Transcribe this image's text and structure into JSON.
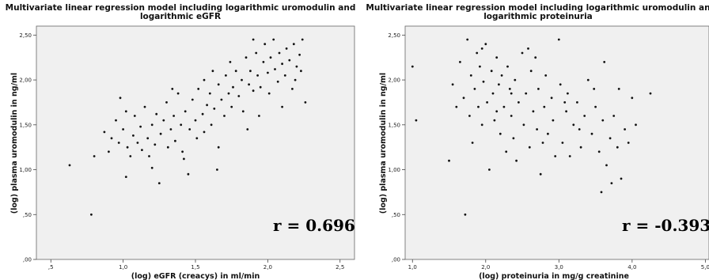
{
  "chart_data": [
    {
      "type": "scatter",
      "title": "Multivariate linear regression model including logarithmic uromodulin and logarithmic eGFR",
      "title_lines": [
        "Multivariate linear regression model including logarithmic uromodulin and",
        "logarithmic eGFR"
      ],
      "xlabel": "(log) eGFR (creacys) in ml/min",
      "ylabel": "(log) plasma uromodulin in ng/ml",
      "xlim": [
        0.4,
        2.6
      ],
      "ylim": [
        0.0,
        2.6
      ],
      "x_ticks": [
        {
          "v": 0.5,
          "label": ",5"
        },
        {
          "v": 1.0,
          "label": "1,0"
        },
        {
          "v": 1.5,
          "label": "1,5"
        },
        {
          "v": 2.0,
          "label": "2,0"
        },
        {
          "v": 2.5,
          "label": "2,5"
        }
      ],
      "y_ticks": [
        {
          "v": 0.0,
          "label": ",00"
        },
        {
          "v": 0.5,
          "label": ",50"
        },
        {
          "v": 1.0,
          "label": "1,00"
        },
        {
          "v": 1.5,
          "label": "1,50"
        },
        {
          "v": 2.0,
          "label": "2,00"
        },
        {
          "v": 2.5,
          "label": "2,50"
        }
      ],
      "annotation": "r = 0.696",
      "grid": false,
      "points": [
        [
          0.63,
          1.05
        ],
        [
          0.78,
          0.5
        ],
        [
          0.8,
          1.15
        ],
        [
          0.87,
          1.42
        ],
        [
          0.9,
          1.2
        ],
        [
          0.92,
          1.35
        ],
        [
          0.95,
          1.55
        ],
        [
          0.97,
          1.3
        ],
        [
          0.98,
          1.8
        ],
        [
          1.0,
          1.45
        ],
        [
          1.02,
          1.65
        ],
        [
          1.03,
          1.25
        ],
        [
          1.05,
          1.15
        ],
        [
          1.07,
          1.38
        ],
        [
          1.08,
          1.6
        ],
        [
          1.1,
          1.3
        ],
        [
          1.12,
          1.48
        ],
        [
          1.13,
          1.22
        ],
        [
          1.15,
          1.7
        ],
        [
          1.17,
          1.35
        ],
        [
          1.18,
          1.15
        ],
        [
          1.2,
          1.5
        ],
        [
          1.22,
          1.28
        ],
        [
          1.23,
          1.62
        ],
        [
          1.25,
          0.85
        ],
        [
          1.26,
          1.4
        ],
        [
          1.28,
          1.55
        ],
        [
          1.3,
          1.75
        ],
        [
          1.31,
          1.25
        ],
        [
          1.33,
          1.45
        ],
        [
          1.35,
          1.6
        ],
        [
          1.36,
          1.32
        ],
        [
          1.38,
          1.85
        ],
        [
          1.4,
          1.5
        ],
        [
          1.41,
          1.2
        ],
        [
          1.43,
          1.65
        ],
        [
          1.45,
          0.95
        ],
        [
          1.46,
          1.45
        ],
        [
          1.48,
          1.78
        ],
        [
          1.5,
          1.55
        ],
        [
          1.51,
          1.35
        ],
        [
          1.52,
          1.9
        ],
        [
          1.55,
          1.62
        ],
        [
          1.56,
          1.42
        ],
        [
          1.58,
          1.72
        ],
        [
          1.6,
          1.85
        ],
        [
          1.61,
          1.5
        ],
        [
          1.63,
          1.68
        ],
        [
          1.65,
          1.0
        ],
        [
          1.66,
          1.95
        ],
        [
          1.68,
          1.78
        ],
        [
          1.7,
          1.6
        ],
        [
          1.71,
          2.05
        ],
        [
          1.73,
          1.85
        ],
        [
          1.75,
          1.7
        ],
        [
          1.76,
          1.92
        ],
        [
          1.78,
          2.1
        ],
        [
          1.8,
          1.82
        ],
        [
          1.82,
          2.0
        ],
        [
          1.83,
          1.65
        ],
        [
          1.85,
          2.25
        ],
        [
          1.87,
          1.95
        ],
        [
          1.88,
          2.1
        ],
        [
          1.9,
          1.88
        ],
        [
          1.92,
          2.3
        ],
        [
          1.93,
          2.05
        ],
        [
          1.95,
          1.92
        ],
        [
          1.97,
          2.2
        ],
        [
          1.98,
          2.4
        ],
        [
          2.0,
          2.08
        ],
        [
          2.01,
          1.85
        ],
        [
          2.02,
          2.25
        ],
        [
          2.04,
          2.45
        ],
        [
          2.05,
          2.12
        ],
        [
          2.07,
          1.98
        ],
        [
          2.08,
          2.3
        ],
        [
          2.1,
          2.18
        ],
        [
          2.12,
          2.05
        ],
        [
          2.13,
          2.35
        ],
        [
          2.15,
          2.22
        ],
        [
          2.17,
          1.9
        ],
        [
          2.18,
          2.4
        ],
        [
          2.2,
          2.15
        ],
        [
          2.22,
          2.28
        ],
        [
          2.24,
          2.45
        ],
        [
          2.26,
          1.75
        ],
        [
          1.94,
          1.6
        ],
        [
          2.1,
          1.7
        ],
        [
          1.86,
          1.45
        ],
        [
          1.66,
          1.25
        ],
        [
          1.42,
          1.12
        ],
        [
          1.2,
          1.02
        ],
        [
          1.02,
          0.92
        ],
        [
          2.19,
          2.0
        ],
        [
          2.23,
          2.1
        ],
        [
          1.74,
          2.2
        ],
        [
          1.56,
          2.0
        ],
        [
          1.34,
          1.9
        ],
        [
          1.62,
          2.1
        ],
        [
          1.9,
          2.45
        ]
      ]
    },
    {
      "type": "scatter",
      "title": "Multivariate linear regression model including logarithmic uromodulin and logarithmic proteinuria",
      "title_lines": [
        "Multivariate linear regression model including logarithmic uromodulin an",
        "logarithmic proteinuria"
      ],
      "xlabel": "(log) proteinuria in mg/g creatinine",
      "ylabel": "(log) plasma uromodulin in ng/ml",
      "xlim": [
        0.9,
        5.05
      ],
      "ylim": [
        0.0,
        2.6
      ],
      "x_ticks": [
        {
          "v": 1.0,
          "label": "1,0"
        },
        {
          "v": 2.0,
          "label": "2,0"
        },
        {
          "v": 3.0,
          "label": "3,0"
        },
        {
          "v": 4.0,
          "label": "4,0"
        },
        {
          "v": 5.0,
          "label": "5,0"
        }
      ],
      "y_ticks": [
        {
          "v": 0.0,
          "label": ",00"
        },
        {
          "v": 0.5,
          "label": ",50"
        },
        {
          "v": 1.0,
          "label": "1,00"
        },
        {
          "v": 1.5,
          "label": "1,50"
        },
        {
          "v": 2.0,
          "label": "2,00"
        },
        {
          "v": 2.5,
          "label": "2,50"
        }
      ],
      "annotation": "r = -0.393",
      "grid": false,
      "points": [
        [
          1.0,
          2.15
        ],
        [
          1.05,
          1.55
        ],
        [
          1.5,
          1.1
        ],
        [
          1.55,
          1.95
        ],
        [
          1.65,
          2.2
        ],
        [
          1.7,
          1.8
        ],
        [
          1.72,
          0.5
        ],
        [
          1.75,
          2.45
        ],
        [
          1.78,
          1.6
        ],
        [
          1.8,
          2.05
        ],
        [
          1.82,
          1.3
        ],
        [
          1.85,
          1.9
        ],
        [
          1.88,
          2.3
        ],
        [
          1.9,
          1.7
        ],
        [
          1.92,
          2.15
        ],
        [
          1.95,
          1.5
        ],
        [
          1.97,
          1.98
        ],
        [
          2.0,
          2.4
        ],
        [
          2.02,
          1.75
        ],
        [
          2.05,
          1.0
        ],
        [
          2.08,
          2.1
        ],
        [
          2.1,
          1.85
        ],
        [
          2.12,
          1.55
        ],
        [
          2.15,
          2.25
        ],
        [
          2.18,
          1.95
        ],
        [
          2.2,
          1.4
        ],
        [
          2.22,
          2.05
        ],
        [
          2.25,
          1.7
        ],
        [
          2.28,
          1.2
        ],
        [
          2.3,
          2.15
        ],
        [
          2.33,
          1.9
        ],
        [
          2.35,
          1.6
        ],
        [
          2.38,
          1.35
        ],
        [
          2.4,
          2.0
        ],
        [
          2.45,
          1.75
        ],
        [
          2.5,
          2.3
        ],
        [
          2.52,
          1.5
        ],
        [
          2.55,
          1.85
        ],
        [
          2.6,
          1.25
        ],
        [
          2.62,
          2.1
        ],
        [
          2.65,
          1.65
        ],
        [
          2.7,
          1.45
        ],
        [
          2.72,
          1.9
        ],
        [
          2.75,
          0.95
        ],
        [
          2.8,
          1.7
        ],
        [
          2.82,
          2.05
        ],
        [
          2.85,
          1.4
        ],
        [
          2.9,
          1.8
        ],
        [
          2.92,
          1.55
        ],
        [
          2.95,
          1.15
        ],
        [
          3.0,
          2.45
        ],
        [
          3.02,
          1.95
        ],
        [
          3.05,
          1.3
        ],
        [
          3.1,
          1.65
        ],
        [
          3.12,
          1.85
        ],
        [
          3.15,
          1.15
        ],
        [
          3.2,
          1.5
        ],
        [
          3.25,
          1.75
        ],
        [
          3.3,
          1.25
        ],
        [
          3.35,
          1.6
        ],
        [
          3.4,
          2.0
        ],
        [
          3.45,
          1.4
        ],
        [
          3.5,
          1.7
        ],
        [
          3.55,
          1.2
        ],
        [
          3.6,
          1.55
        ],
        [
          3.62,
          2.2
        ],
        [
          3.65,
          1.05
        ],
        [
          3.7,
          1.35
        ],
        [
          3.72,
          0.85
        ],
        [
          3.75,
          1.6
        ],
        [
          3.8,
          1.25
        ],
        [
          3.82,
          1.9
        ],
        [
          3.85,
          0.9
        ],
        [
          3.9,
          1.45
        ],
        [
          3.95,
          1.3
        ],
        [
          4.0,
          1.8
        ],
        [
          4.05,
          1.5
        ],
        [
          4.25,
          1.85
        ],
        [
          2.58,
          2.35
        ],
        [
          1.6,
          1.7
        ],
        [
          2.68,
          2.25
        ],
        [
          3.48,
          1.9
        ],
        [
          3.58,
          0.75
        ],
        [
          2.78,
          1.3
        ],
        [
          1.95,
          2.35
        ],
        [
          2.15,
          1.65
        ],
        [
          2.35,
          1.85
        ],
        [
          3.28,
          1.45
        ],
        [
          3.08,
          1.75
        ],
        [
          2.42,
          1.1
        ]
      ]
    }
  ]
}
